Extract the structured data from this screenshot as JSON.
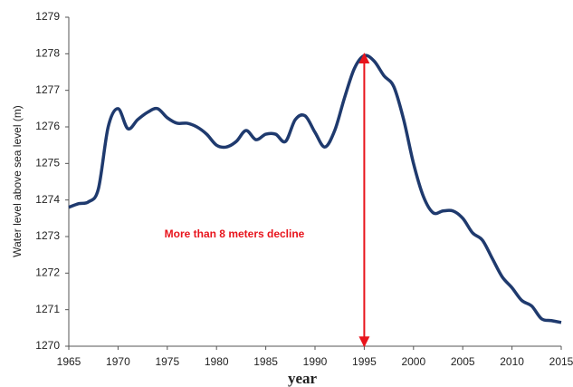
{
  "chart_data": {
    "type": "line",
    "x_label": "year",
    "y_label": "Water level above sea level (m)",
    "x": [
      1965,
      1966,
      1967,
      1968,
      1969,
      1970,
      1971,
      1972,
      1973,
      1974,
      1975,
      1976,
      1977,
      1978,
      1979,
      1980,
      1981,
      1982,
      1983,
      1984,
      1985,
      1986,
      1987,
      1988,
      1989,
      1990,
      1991,
      1992,
      1993,
      1994,
      1995,
      1996,
      1997,
      1998,
      1999,
      2000,
      2001,
      2002,
      2003,
      2004,
      2005,
      2006,
      2007,
      2008,
      2009,
      2010,
      2011,
      2012,
      2013,
      2014,
      2015
    ],
    "series": [
      {
        "color": "#1f3a6e",
        "values": [
          1273.8,
          1273.9,
          1273.95,
          1274.3,
          1276.0,
          1276.5,
          1275.95,
          1276.2,
          1276.4,
          1276.5,
          1276.25,
          1276.1,
          1276.1,
          1276.0,
          1275.8,
          1275.5,
          1275.45,
          1275.6,
          1275.9,
          1275.65,
          1275.8,
          1275.8,
          1275.6,
          1276.2,
          1276.3,
          1275.85,
          1275.45,
          1275.9,
          1276.8,
          1277.6,
          1277.95,
          1277.8,
          1277.4,
          1277.1,
          1276.2,
          1275.0,
          1274.1,
          1273.65,
          1273.7,
          1273.7,
          1273.5,
          1273.1,
          1272.9,
          1272.4,
          1271.9,
          1271.6,
          1271.25,
          1271.1,
          1270.75,
          1270.7,
          1270.65
        ]
      }
    ],
    "xlim": [
      1965,
      2015
    ],
    "xticks": [
      1965,
      1970,
      1975,
      1980,
      1985,
      1990,
      1995,
      2000,
      2005,
      2010,
      2015
    ],
    "ylim": [
      1270,
      1279
    ],
    "yticks": [
      1270,
      1271,
      1272,
      1273,
      1274,
      1275,
      1276,
      1277,
      1278,
      1279
    ],
    "grid": false,
    "annotation": {
      "text": "More than 8 meters decline",
      "color": "#e8141c",
      "arrow_x": 1995,
      "arrow_from": 1278,
      "arrow_to": 1270
    }
  }
}
